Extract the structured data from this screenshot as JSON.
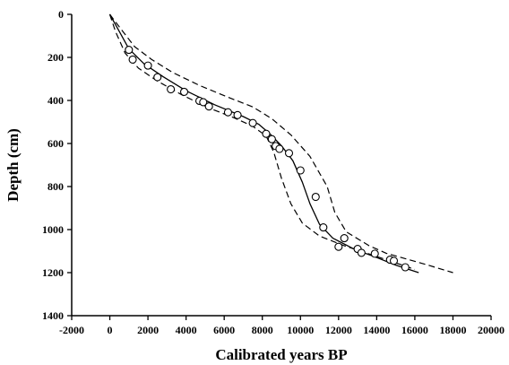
{
  "chart_data": {
    "type": "scatter",
    "title": "",
    "xlabel": "Calibrated years BP",
    "ylabel": "Depth (cm)",
    "xlim": [
      -2000,
      20000
    ],
    "ylim": [
      0,
      1400
    ],
    "y_inverted": true,
    "grid": false,
    "legend": "none",
    "x_ticks": [
      "-2000",
      "0",
      "2000",
      "4000",
      "6000",
      "8000",
      "10000",
      "12000",
      "14000",
      "16000",
      "18000",
      "20000"
    ],
    "y_ticks": [
      "0",
      "200",
      "400",
      "600",
      "800",
      "1000",
      "1200",
      "1400"
    ],
    "series": [
      {
        "kind": "points",
        "marker": "open-circle",
        "points": [
          [
            1000,
            165
          ],
          [
            1200,
            210
          ],
          [
            2000,
            238
          ],
          [
            2500,
            292
          ],
          [
            3200,
            348
          ],
          [
            3900,
            360
          ],
          [
            4700,
            402
          ],
          [
            4900,
            408
          ],
          [
            5200,
            428
          ],
          [
            6200,
            455
          ],
          [
            6700,
            468
          ],
          [
            7500,
            505
          ],
          [
            8200,
            555
          ],
          [
            8500,
            580
          ],
          [
            8700,
            612
          ],
          [
            8900,
            625
          ],
          [
            9400,
            645
          ],
          [
            10000,
            725
          ],
          [
            10800,
            848
          ],
          [
            11200,
            990
          ],
          [
            12000,
            1080
          ],
          [
            12300,
            1040
          ],
          [
            13000,
            1090
          ],
          [
            13200,
            1108
          ],
          [
            13900,
            1112
          ],
          [
            14700,
            1140
          ],
          [
            14900,
            1145
          ],
          [
            15500,
            1175
          ]
        ]
      },
      {
        "kind": "line",
        "style": "solid",
        "points": [
          [
            0,
            0
          ],
          [
            500,
            80
          ],
          [
            1000,
            160
          ],
          [
            1800,
            230
          ],
          [
            2800,
            290
          ],
          [
            4000,
            355
          ],
          [
            5500,
            420
          ],
          [
            7000,
            475
          ],
          [
            7800,
            510
          ],
          [
            8400,
            555
          ],
          [
            9000,
            610
          ],
          [
            9600,
            680
          ],
          [
            10100,
            780
          ],
          [
            10500,
            880
          ],
          [
            11000,
            975
          ],
          [
            11700,
            1040
          ],
          [
            12800,
            1090
          ],
          [
            14000,
            1130
          ],
          [
            15000,
            1165
          ],
          [
            16200,
            1200
          ]
        ]
      },
      {
        "kind": "line",
        "style": "dashed",
        "points": [
          [
            0,
            0
          ],
          [
            600,
            70
          ],
          [
            1300,
            150
          ],
          [
            2200,
            210
          ],
          [
            3300,
            270
          ],
          [
            4700,
            330
          ],
          [
            6200,
            385
          ],
          [
            7500,
            430
          ],
          [
            8500,
            485
          ],
          [
            9500,
            560
          ],
          [
            10500,
            660
          ],
          [
            11400,
            800
          ],
          [
            11800,
            920
          ],
          [
            12400,
            1010
          ],
          [
            13600,
            1075
          ],
          [
            14500,
            1110
          ],
          [
            15500,
            1135
          ],
          [
            16500,
            1160
          ],
          [
            18000,
            1200
          ]
        ]
      },
      {
        "kind": "line",
        "style": "dashed",
        "points": [
          [
            0,
            0
          ],
          [
            300,
            80
          ],
          [
            800,
            180
          ],
          [
            1500,
            250
          ],
          [
            2500,
            310
          ],
          [
            3800,
            375
          ],
          [
            5200,
            435
          ],
          [
            6500,
            480
          ],
          [
            7500,
            520
          ],
          [
            8200,
            565
          ],
          [
            8600,
            640
          ],
          [
            9000,
            760
          ],
          [
            9500,
            880
          ],
          [
            10100,
            970
          ],
          [
            11000,
            1030
          ],
          [
            12300,
            1075
          ],
          [
            13500,
            1110
          ],
          [
            14500,
            1140
          ],
          [
            15500,
            1170
          ],
          [
            16000,
            1185
          ]
        ]
      }
    ]
  }
}
